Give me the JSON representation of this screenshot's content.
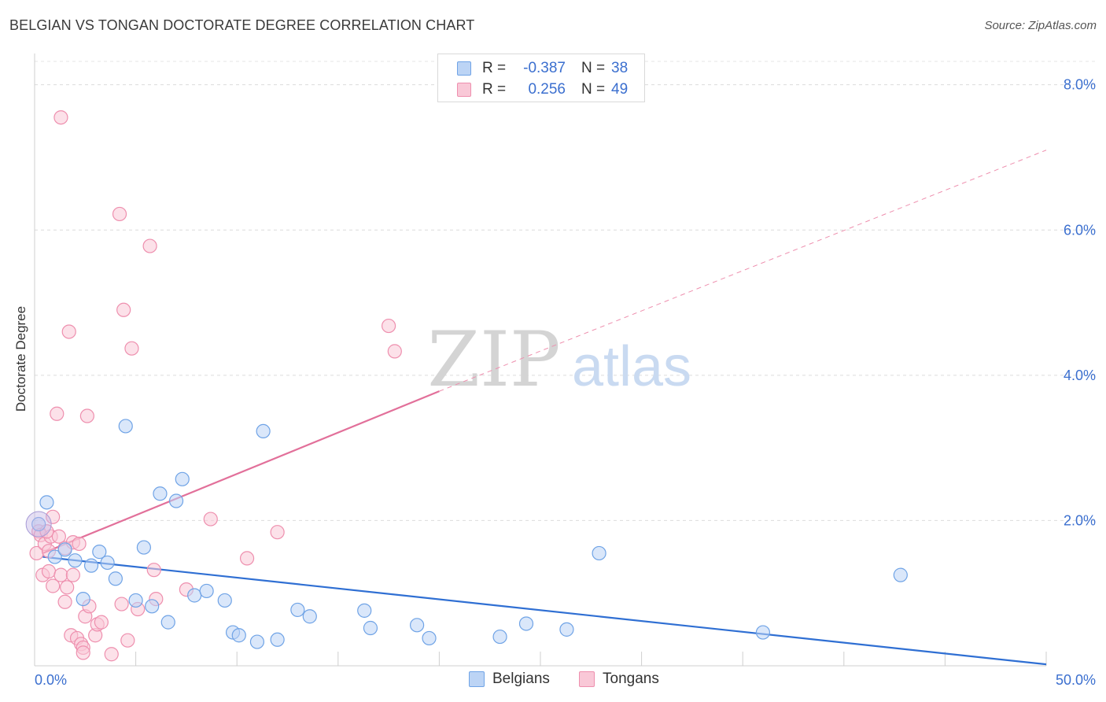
{
  "header": {
    "title": "BELGIAN VS TONGAN DOCTORATE DEGREE CORRELATION CHART",
    "source": "Source: ZipAtlas.com"
  },
  "legend": {
    "rows": [
      {
        "r_label": "R =",
        "r_value": "-0.387",
        "n_label": "N =",
        "n_value": "38",
        "color": "#6fa3e6",
        "fill": "#bcd4f5"
      },
      {
        "r_label": "R =",
        "r_value": "0.256",
        "n_label": "N =",
        "n_value": "49",
        "color": "#ee8fae",
        "fill": "#f9c8d7"
      }
    ]
  },
  "bottom_legend": {
    "items": [
      {
        "label": "Belgians",
        "color": "#6fa3e6",
        "fill": "#bcd4f5"
      },
      {
        "label": "Tongans",
        "color": "#ee8fae",
        "fill": "#f9c8d7"
      }
    ]
  },
  "watermark": {
    "zip": "ZIP",
    "atlas": "atlas"
  },
  "chart_data": {
    "type": "scatter",
    "title": "BELGIAN VS TONGAN DOCTORATE DEGREE CORRELATION CHART",
    "xlabel": "",
    "ylabel": "Doctorate Degree",
    "xlim": [
      0,
      50
    ],
    "ylim": [
      0,
      8.3
    ],
    "x_tick_labels": [
      {
        "value": 0,
        "label": "0.0%"
      },
      {
        "value": 50,
        "label": "50.0%"
      }
    ],
    "y_tick_labels": [
      {
        "value": 2,
        "label": "2.0%"
      },
      {
        "value": 4,
        "label": "4.0%"
      },
      {
        "value": 6,
        "label": "6.0%"
      },
      {
        "value": 8,
        "label": "8.0%"
      }
    ],
    "x_minor_ticks": [
      0,
      5,
      10,
      15,
      20,
      25,
      30,
      35,
      40,
      45,
      50
    ],
    "y_gridlines": [
      2,
      4,
      6,
      8
    ],
    "grid": true,
    "legend_position": "top-center",
    "series": [
      {
        "name": "Belgians",
        "color": "#6fa3e6",
        "fill": "#bcd4f5",
        "r": -0.387,
        "n": 38,
        "points": [
          [
            0.2,
            1.95
          ],
          [
            0.6,
            2.25
          ],
          [
            1.0,
            1.5
          ],
          [
            1.5,
            1.6
          ],
          [
            2.0,
            1.45
          ],
          [
            2.4,
            0.92
          ],
          [
            2.8,
            1.38
          ],
          [
            3.2,
            1.57
          ],
          [
            3.6,
            1.42
          ],
          [
            4.0,
            1.2
          ],
          [
            4.5,
            3.3
          ],
          [
            5.0,
            0.9
          ],
          [
            5.4,
            1.63
          ],
          [
            5.8,
            0.82
          ],
          [
            6.2,
            2.37
          ],
          [
            6.6,
            0.6
          ],
          [
            7.0,
            2.27
          ],
          [
            7.3,
            2.57
          ],
          [
            7.9,
            0.97
          ],
          [
            8.5,
            1.03
          ],
          [
            9.4,
            0.9
          ],
          [
            9.8,
            0.46
          ],
          [
            10.1,
            0.42
          ],
          [
            11.0,
            0.33
          ],
          [
            11.3,
            3.23
          ],
          [
            12.0,
            0.36
          ],
          [
            13.0,
            0.77
          ],
          [
            13.6,
            0.68
          ],
          [
            16.3,
            0.76
          ],
          [
            16.6,
            0.52
          ],
          [
            18.9,
            0.56
          ],
          [
            19.5,
            0.38
          ],
          [
            23.0,
            0.4
          ],
          [
            24.3,
            0.58
          ],
          [
            26.3,
            0.5
          ],
          [
            27.9,
            1.55
          ],
          [
            42.8,
            1.25
          ],
          [
            36.0,
            0.46
          ]
        ],
        "trend": {
          "x0": 0.4,
          "y0": 1.5,
          "x1": 50,
          "y1": 0.02
        }
      },
      {
        "name": "Tongans",
        "color": "#ee8fae",
        "fill": "#f9c8d7",
        "r": 0.256,
        "n": 49,
        "points": [
          [
            0.1,
            1.55
          ],
          [
            0.2,
            1.85
          ],
          [
            0.3,
            1.8
          ],
          [
            0.4,
            1.25
          ],
          [
            0.5,
            1.68
          ],
          [
            0.7,
            1.3
          ],
          [
            0.7,
            1.58
          ],
          [
            0.8,
            1.78
          ],
          [
            0.9,
            2.05
          ],
          [
            0.9,
            1.1
          ],
          [
            1.1,
            3.47
          ],
          [
            1.2,
            1.78
          ],
          [
            1.3,
            1.25
          ],
          [
            1.3,
            7.55
          ],
          [
            1.5,
            0.88
          ],
          [
            1.5,
            1.62
          ],
          [
            1.6,
            1.08
          ],
          [
            1.7,
            4.6
          ],
          [
            1.8,
            0.42
          ],
          [
            1.9,
            1.25
          ],
          [
            1.9,
            1.7
          ],
          [
            2.1,
            0.38
          ],
          [
            2.2,
            1.68
          ],
          [
            2.3,
            0.3
          ],
          [
            2.4,
            0.25
          ],
          [
            2.4,
            0.18
          ],
          [
            2.5,
            0.68
          ],
          [
            2.6,
            3.44
          ],
          [
            2.7,
            0.82
          ],
          [
            3.0,
            0.42
          ],
          [
            3.1,
            0.57
          ],
          [
            3.3,
            0.6
          ],
          [
            3.8,
            0.16
          ],
          [
            4.2,
            6.22
          ],
          [
            4.3,
            0.85
          ],
          [
            4.4,
            4.9
          ],
          [
            4.6,
            0.35
          ],
          [
            4.8,
            4.37
          ],
          [
            5.1,
            0.78
          ],
          [
            5.7,
            5.78
          ],
          [
            5.9,
            1.32
          ],
          [
            6.0,
            0.92
          ],
          [
            7.5,
            1.05
          ],
          [
            8.7,
            2.02
          ],
          [
            10.5,
            1.48
          ],
          [
            12.0,
            1.84
          ],
          [
            17.5,
            4.68
          ],
          [
            17.8,
            4.33
          ],
          [
            0.6,
            1.85
          ]
        ],
        "trend_solid": {
          "x0": 0.4,
          "y0": 1.55,
          "x1": 20,
          "y1": 3.78
        },
        "trend_dashed": {
          "x0": 20,
          "y0": 3.78,
          "x1": 50,
          "y1": 7.1
        }
      }
    ]
  }
}
